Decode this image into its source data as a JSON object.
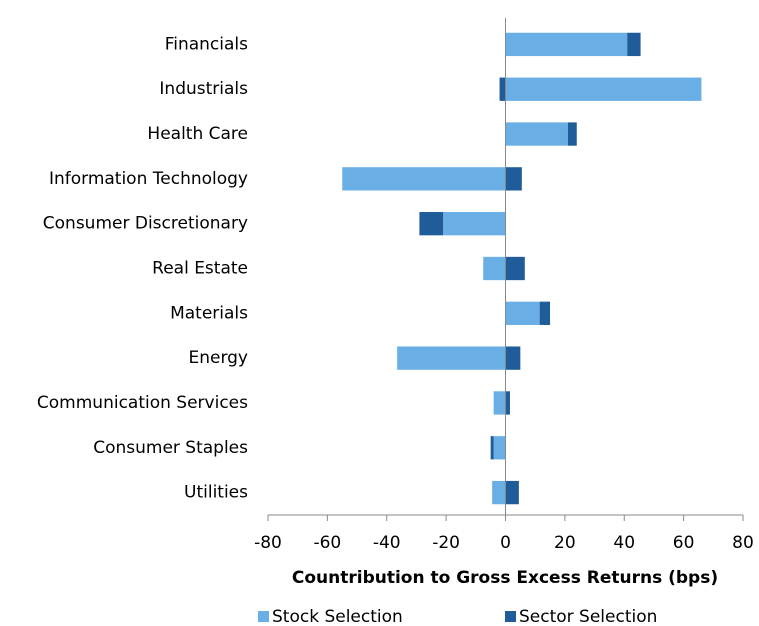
{
  "chart_data": {
    "type": "bar",
    "orientation": "horizontal",
    "stacked": true,
    "xlabel": "Countribution to Gross Excess Returns (bps)",
    "categories": [
      "Financials",
      "Industrials",
      "Health Care",
      "Information Technology",
      "Consumer Discretionary",
      "Real Estate",
      "Materials",
      "Energy",
      "Communication Services",
      "Consumer Staples",
      "Utilities"
    ],
    "series": [
      {
        "name": "Stock Selection",
        "color": "#6aaee6",
        "values": [
          41,
          66,
          21,
          -55,
          -21,
          -7.5,
          11.5,
          -36.5,
          -4,
          -4,
          -4.5
        ]
      },
      {
        "name": "Sector Selection",
        "color": "#1f5c99",
        "values": [
          4.5,
          -2,
          3,
          5.5,
          -8,
          6.5,
          3.5,
          5,
          1.5,
          -1,
          4.5
        ]
      }
    ],
    "xlim": [
      -80,
      80
    ],
    "xticks": [
      -80,
      -60,
      -40,
      -20,
      0,
      20,
      40,
      60,
      80
    ],
    "legend": "bottom"
  }
}
